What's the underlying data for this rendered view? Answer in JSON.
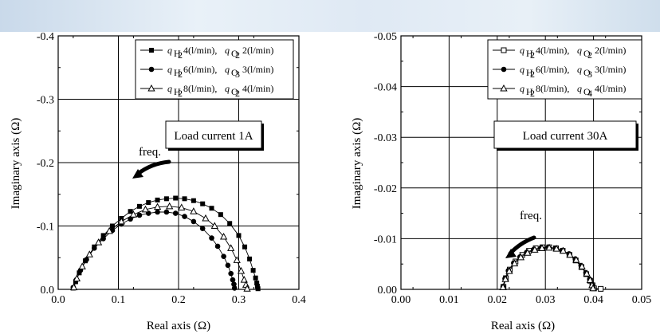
{
  "chart_data": [
    {
      "type": "scatter",
      "title": "",
      "xlabel": "Real axis (Ω)",
      "ylabel": "Imaginary axis (Ω)",
      "xlim": [
        0.0,
        0.4
      ],
      "ylim": [
        0.0,
        -0.4
      ],
      "xticks": [
        "0.0",
        "0.1",
        "0.2",
        "0.3",
        "0.4"
      ],
      "yticks": [
        "0.0",
        "-0.1",
        "-0.2",
        "-0.3",
        "-0.4"
      ],
      "grid": true,
      "legend_position": "top-right",
      "annotation_box": "Load current 1A",
      "freq_label": "freq.",
      "series": [
        {
          "name": "q_H2 4(l/min), q_O2 2(l/min)",
          "marker": "filled-square",
          "legend": {
            "gas1": "q",
            "sub1": "H",
            "sub1b": "2",
            "value1": "4(l/min),",
            "gas2": "q",
            "sub2": "O",
            "sub2b": "2",
            "value2": "2(l/min)"
          },
          "x": [
            0.025,
            0.029,
            0.035,
            0.045,
            0.06,
            0.075,
            0.09,
            0.105,
            0.12,
            0.135,
            0.15,
            0.165,
            0.18,
            0.195,
            0.21,
            0.225,
            0.24,
            0.255,
            0.27,
            0.285,
            0.3,
            0.31,
            0.318,
            0.324,
            0.328,
            0.33,
            0.331,
            0.332
          ],
          "y": [
            -0.002,
            -0.012,
            -0.026,
            -0.045,
            -0.067,
            -0.085,
            -0.1,
            -0.112,
            -0.123,
            -0.131,
            -0.137,
            -0.141,
            -0.143,
            -0.144,
            -0.143,
            -0.14,
            -0.135,
            -0.128,
            -0.118,
            -0.104,
            -0.085,
            -0.067,
            -0.048,
            -0.03,
            -0.018,
            -0.01,
            -0.005,
            -0.001
          ]
        },
        {
          "name": "q_H2 6(l/min), q_O2 3(l/min)",
          "marker": "filled-circle",
          "legend": {
            "gas1": "q",
            "sub1": "H",
            "sub1b": "2",
            "value1": "6(l/min),",
            "gas2": "q",
            "sub2": "O",
            "sub2b": "3",
            "value2": "3(l/min)"
          },
          "x": [
            0.025,
            0.03,
            0.037,
            0.047,
            0.06,
            0.075,
            0.09,
            0.105,
            0.12,
            0.135,
            0.15,
            0.165,
            0.18,
            0.195,
            0.21,
            0.225,
            0.24,
            0.255,
            0.265,
            0.275,
            0.282,
            0.287,
            0.29,
            0.292,
            0.293
          ],
          "y": [
            -0.003,
            -0.015,
            -0.03,
            -0.047,
            -0.065,
            -0.08,
            -0.093,
            -0.103,
            -0.111,
            -0.117,
            -0.12,
            -0.122,
            -0.122,
            -0.12,
            -0.115,
            -0.107,
            -0.096,
            -0.081,
            -0.068,
            -0.052,
            -0.038,
            -0.025,
            -0.015,
            -0.008,
            -0.002
          ]
        },
        {
          "name": "q_H2 8(l/min), q_O2 4(l/min)",
          "marker": "open-triangle",
          "legend": {
            "gas1": "q",
            "sub1": "H",
            "sub1b": "2",
            "value1": "8(l/min),",
            "gas2": "q",
            "sub2": "O",
            "sub2b": "2",
            "value2": "4(l/min)"
          },
          "x": [
            0.026,
            0.031,
            0.04,
            0.052,
            0.067,
            0.085,
            0.105,
            0.125,
            0.145,
            0.165,
            0.185,
            0.205,
            0.225,
            0.245,
            0.26,
            0.275,
            0.287,
            0.297,
            0.304,
            0.309,
            0.312,
            0.314
          ],
          "y": [
            -0.003,
            -0.017,
            -0.036,
            -0.055,
            -0.074,
            -0.092,
            -0.107,
            -0.118,
            -0.126,
            -0.13,
            -0.131,
            -0.129,
            -0.123,
            -0.112,
            -0.1,
            -0.083,
            -0.065,
            -0.046,
            -0.029,
            -0.015,
            -0.007,
            -0.001
          ]
        }
      ]
    },
    {
      "type": "scatter",
      "title": "",
      "xlabel": "Real axis (Ω)",
      "ylabel": "Imaginary axis (Ω)",
      "xlim": [
        0.0,
        0.05
      ],
      "ylim": [
        0.0,
        -0.05
      ],
      "xticks": [
        "0.00",
        "0.01",
        "0.02",
        "0.03",
        "0.04",
        "0.05"
      ],
      "yticks": [
        "0.00",
        "-0.01",
        "-0.02",
        "-0.03",
        "-0.04",
        "-0.05"
      ],
      "grid": true,
      "legend_position": "top-right",
      "annotation_box": "Load current 30A",
      "freq_label": "freq.",
      "series": [
        {
          "name": "q_H2 4(l/min), q_O2 2(l/min)",
          "marker": "open-square",
          "legend": {
            "gas1": "q",
            "sub1": "H",
            "sub1b": "2",
            "value1": "4(l/min),",
            "gas2": "q",
            "sub2": "O",
            "sub2b": "2",
            "value2": "2(l/min)"
          },
          "x": [
            0.0213,
            0.0218,
            0.0226,
            0.0238,
            0.0252,
            0.0266,
            0.028,
            0.0294,
            0.0308,
            0.0322,
            0.0336,
            0.035,
            0.0363,
            0.0375,
            0.0385,
            0.0393,
            0.0398,
            0.0401,
            0.0415
          ],
          "y": [
            -0.0005,
            -0.0022,
            -0.0039,
            -0.0055,
            -0.0068,
            -0.0076,
            -0.0081,
            -0.0083,
            -0.0083,
            -0.0081,
            -0.0076,
            -0.0068,
            -0.0057,
            -0.0044,
            -0.003,
            -0.0017,
            -0.0008,
            -0.0002,
            -0.0001
          ]
        },
        {
          "name": "q_H2 6(l/min), q_O2 3(l/min)",
          "marker": "filled-circle",
          "legend": {
            "gas1": "q",
            "sub1": "H",
            "sub1b": "2",
            "value1": "6(l/min),",
            "gas2": "q",
            "sub2": "O",
            "sub2b": "3",
            "value2": "3(l/min)"
          },
          "x": [
            0.0212,
            0.0216,
            0.0223,
            0.0234,
            0.0247,
            0.0261,
            0.0276,
            0.0291,
            0.0306,
            0.0321,
            0.0335,
            0.0349,
            0.0362,
            0.0374,
            0.0384,
            0.0392,
            0.0397,
            0.0399
          ],
          "y": [
            -0.0005,
            -0.0021,
            -0.0037,
            -0.0052,
            -0.0064,
            -0.0073,
            -0.0079,
            -0.0082,
            -0.0083,
            -0.0081,
            -0.0077,
            -0.007,
            -0.006,
            -0.0047,
            -0.0033,
            -0.002,
            -0.0009,
            -0.0002
          ]
        },
        {
          "name": "q_H2 8(l/min), q_O2 4(l/min)",
          "marker": "open-triangle",
          "legend": {
            "gas1": "q",
            "sub1": "H",
            "sub1b": "2",
            "value1": "8(l/min),",
            "gas2": "q",
            "sub2": "O",
            "sub2b": "4",
            "value2": "4(l/min)"
          },
          "x": [
            0.0212,
            0.0217,
            0.0225,
            0.0236,
            0.0249,
            0.0263,
            0.0278,
            0.0293,
            0.0308,
            0.0323,
            0.0337,
            0.0351,
            0.0364,
            0.0376,
            0.0386,
            0.0393,
            0.0397,
            0.0399
          ],
          "y": [
            -0.0004,
            -0.002,
            -0.0036,
            -0.0051,
            -0.0063,
            -0.0072,
            -0.0078,
            -0.0081,
            -0.0082,
            -0.008,
            -0.0076,
            -0.0068,
            -0.0058,
            -0.0045,
            -0.0031,
            -0.0018,
            -0.0008,
            -0.0002
          ]
        }
      ]
    }
  ]
}
